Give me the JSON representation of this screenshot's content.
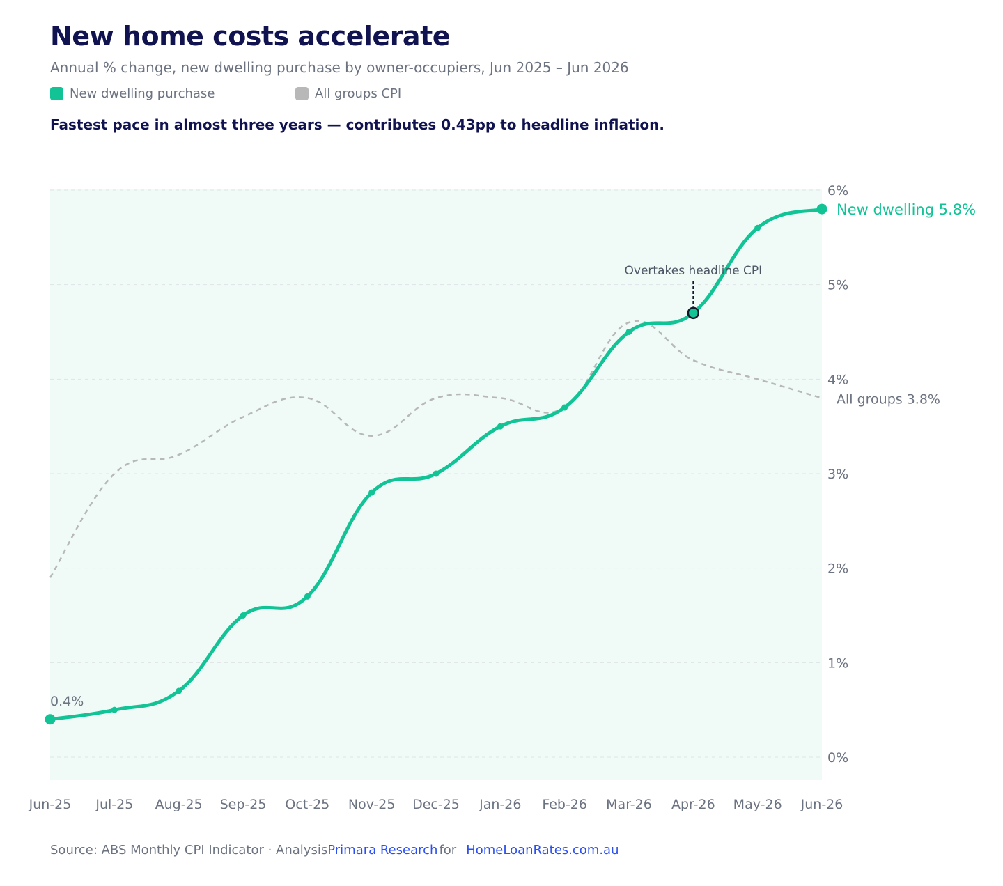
{
  "header": {
    "title": "New home costs accelerate",
    "subtitle": "Annual % change, new dwelling purchase by owner-occupiers, Jun 2025 – Jun 2026",
    "takeaway": "Fastest pace in almost three years — contributes 0.43pp to headline inflation."
  },
  "legend": [
    {
      "label": "New dwelling purchase",
      "color": "#12c495"
    },
    {
      "label": "All groups CPI",
      "color": "#b8b8b8"
    }
  ],
  "chart_data": {
    "type": "line",
    "x": [
      "Jun-25",
      "Jul-25",
      "Aug-25",
      "Sep-25",
      "Oct-25",
      "Nov-25",
      "Dec-25",
      "Jan-26",
      "Feb-26",
      "Mar-26",
      "Apr-26",
      "May-26",
      "Jun-26"
    ],
    "series": [
      {
        "name": "New dwelling purchase",
        "color": "#12c495",
        "style": "solid",
        "values": [
          0.4,
          0.5,
          0.7,
          1.5,
          1.7,
          2.8,
          3.0,
          3.5,
          3.7,
          4.5,
          4.7,
          5.6,
          5.8
        ]
      },
      {
        "name": "All groups CPI",
        "color": "#b8b8b8",
        "style": "dashed",
        "values": [
          1.9,
          3.0,
          3.2,
          3.6,
          3.8,
          3.4,
          3.8,
          3.8,
          3.7,
          4.6,
          4.2,
          4.0,
          3.8
        ]
      }
    ],
    "yticks": [
      "0%",
      "1%",
      "2%",
      "3%",
      "4%",
      "5%",
      "6%"
    ],
    "ylim": [
      -0.25,
      6
    ],
    "y_axis_side": "right",
    "grid": true,
    "plot_background": "#f0fbf8",
    "annotations": {
      "start_label": "0.4%",
      "end_label_primary": "New dwelling 5.8%",
      "end_label_secondary": "All groups 3.8%",
      "callout": {
        "text": "Overtakes headline CPI",
        "x": "Apr-26",
        "y": 4.7
      }
    }
  },
  "footer": {
    "prefix": "Source: ABS Monthly CPI Indicator · Analysis",
    "link1": "Primara Research",
    "middle": "for",
    "link2": "HomeLoanRates.com.au"
  }
}
